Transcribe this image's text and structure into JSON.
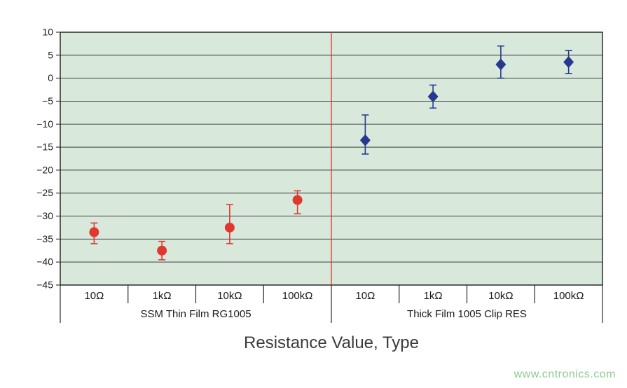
{
  "watermark": "www.cntronics.com",
  "chart_data": {
    "type": "scatter",
    "title": "",
    "xlabel": "Resistance Value, Type",
    "ylabel": "",
    "ylim": [
      -45,
      10
    ],
    "ytick_values": [
      10,
      5,
      0,
      -5,
      -10,
      -15,
      -20,
      -25,
      -30,
      -35,
      -40,
      -45
    ],
    "ytick_labels": [
      "10",
      "5",
      "0",
      "−5",
      "−10",
      "−15",
      "−20",
      "−25",
      "−30",
      "−35",
      "−40",
      "−45"
    ],
    "grid": "horizontal",
    "legend_position": "none",
    "plot_bg": "#d8e9dc",
    "grid_color": "#3c3c3c",
    "border_color": "#2a2a2a",
    "divider_color": "#e0372e",
    "groups": [
      {
        "label": "SSM Thin Film RG1005",
        "categories": [
          "10Ω",
          "1kΩ",
          "10kΩ",
          "100kΩ"
        ]
      },
      {
        "label": "Thick Film 1005 Clip RES",
        "categories": [
          "10Ω",
          "1kΩ",
          "10kΩ",
          "100kΩ"
        ]
      }
    ],
    "series": [
      {
        "name": "SSM Thin Film RG1005",
        "marker": "circle",
        "color": "#e0372e",
        "points": [
          {
            "x": "10Ω",
            "y": -33.5,
            "lo": -36.0,
            "hi": -31.5
          },
          {
            "x": "1kΩ",
            "y": -37.5,
            "lo": -39.5,
            "hi": -35.5
          },
          {
            "x": "10kΩ",
            "y": -32.5,
            "lo": -36.0,
            "hi": -27.5
          },
          {
            "x": "100kΩ",
            "y": -26.5,
            "lo": -29.5,
            "hi": -24.5
          }
        ]
      },
      {
        "name": "Thick Film 1005 Clip RES",
        "marker": "diamond",
        "color": "#27398e",
        "points": [
          {
            "x": "10Ω",
            "y": -13.5,
            "lo": -16.5,
            "hi": -8.0
          },
          {
            "x": "1kΩ",
            "y": -4.0,
            "lo": -6.5,
            "hi": -1.5
          },
          {
            "x": "10kΩ",
            "y": 3.0,
            "lo": 0.0,
            "hi": 7.0
          },
          {
            "x": "100kΩ",
            "y": 3.5,
            "lo": 1.0,
            "hi": 6.0
          }
        ]
      }
    ]
  }
}
